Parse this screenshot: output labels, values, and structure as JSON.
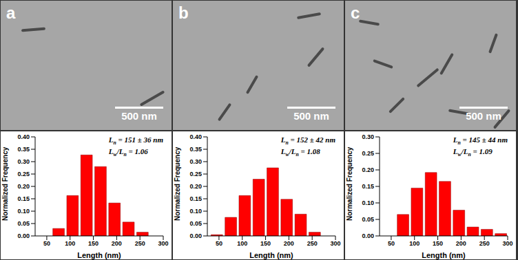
{
  "chart_data": [
    {
      "type": "histogram",
      "title": "a",
      "annotations": [
        "500 nm",
        "Ln = 151 ± 36 nm",
        "Lw/Ln = 1.06"
      ],
      "x_label": "Length (nm)",
      "y_label": "Normalized Frequency",
      "bins": [
        60,
        90,
        120,
        150,
        180,
        210,
        240,
        270
      ],
      "values": [
        0.03,
        0.163,
        0.327,
        0.28,
        0.133,
        0.056,
        0.015
      ],
      "color": "#ff0000",
      "xlim": [
        25,
        300
      ],
      "xticks": [
        50,
        100,
        150,
        200,
        250,
        300
      ],
      "ylim": [
        0,
        0.4
      ],
      "yticks": [
        {
          "value": 0,
          "label": "0.00"
        },
        {
          "value": 0.05,
          "label": "0.05"
        },
        {
          "value": 0.1,
          "label": "0.10"
        },
        {
          "value": 0.15,
          "label": "0.15"
        },
        {
          "value": 0.2,
          "label": "0.20"
        },
        {
          "value": 0.25,
          "label": "0.25"
        },
        {
          "value": 0.3,
          "label": "0.30"
        },
        {
          "value": 0.35,
          "label": "0.35"
        },
        {
          "value": 0.4,
          "label": "0.40"
        }
      ]
    },
    {
      "type": "histogram",
      "title": "b",
      "annotations": [
        "500 nm",
        "Ln = 152 ± 42 nm",
        "Lw/Ln = 1.08"
      ],
      "x_label": "Length (nm)",
      "y_label": "Normalized Frequency",
      "bins": [
        30,
        60,
        90,
        120,
        150,
        180,
        210,
        240,
        270
      ],
      "values": [
        0.005,
        0.075,
        0.163,
        0.229,
        0.275,
        0.148,
        0.088,
        0.015
      ],
      "color": "#ff0000",
      "xlim": [
        25,
        300
      ],
      "xticks": [
        50,
        100,
        150,
        200,
        250,
        300
      ],
      "ylim": [
        0,
        0.4
      ],
      "yticks": [
        {
          "value": 0,
          "label": "0.00"
        },
        {
          "value": 0.05,
          "label": "0.05"
        },
        {
          "value": 0.1,
          "label": "0.10"
        },
        {
          "value": 0.15,
          "label": "0.15"
        },
        {
          "value": 0.2,
          "label": "0.20"
        },
        {
          "value": 0.25,
          "label": "0.25"
        },
        {
          "value": 0.3,
          "label": "0.30"
        },
        {
          "value": 0.35,
          "label": "0.35"
        },
        {
          "value": 0.4,
          "label": "0.40"
        }
      ]
    },
    {
      "type": "histogram",
      "title": "c",
      "annotations": [
        "500 nm",
        "Ln = 145 ± 44 nm",
        "Lw/Ln = 1.09"
      ],
      "x_label": "Length (nm)",
      "y_label": "Normalized Frequency",
      "bins": [
        60,
        90,
        120,
        150,
        180,
        210,
        240,
        270,
        300
      ],
      "values": [
        0.065,
        0.145,
        0.192,
        0.165,
        0.078,
        0.027,
        0.02,
        0.007
      ],
      "color": "#ff0000",
      "xlim": [
        25,
        300
      ],
      "xticks": [
        50,
        100,
        150,
        200,
        250,
        300
      ],
      "ylim": [
        0,
        0.3
      ],
      "yticks": [
        {
          "value": 0,
          "label": "0.00"
        },
        {
          "value": 0.05,
          "label": "0.05"
        },
        {
          "value": 0.1,
          "label": "0.10"
        },
        {
          "value": 0.15,
          "label": "0.15"
        },
        {
          "value": 0.2,
          "label": "0.20"
        },
        {
          "value": 0.25,
          "label": "0.25"
        },
        {
          "value": 0.3,
          "label": "0.30"
        }
      ]
    }
  ]
}
